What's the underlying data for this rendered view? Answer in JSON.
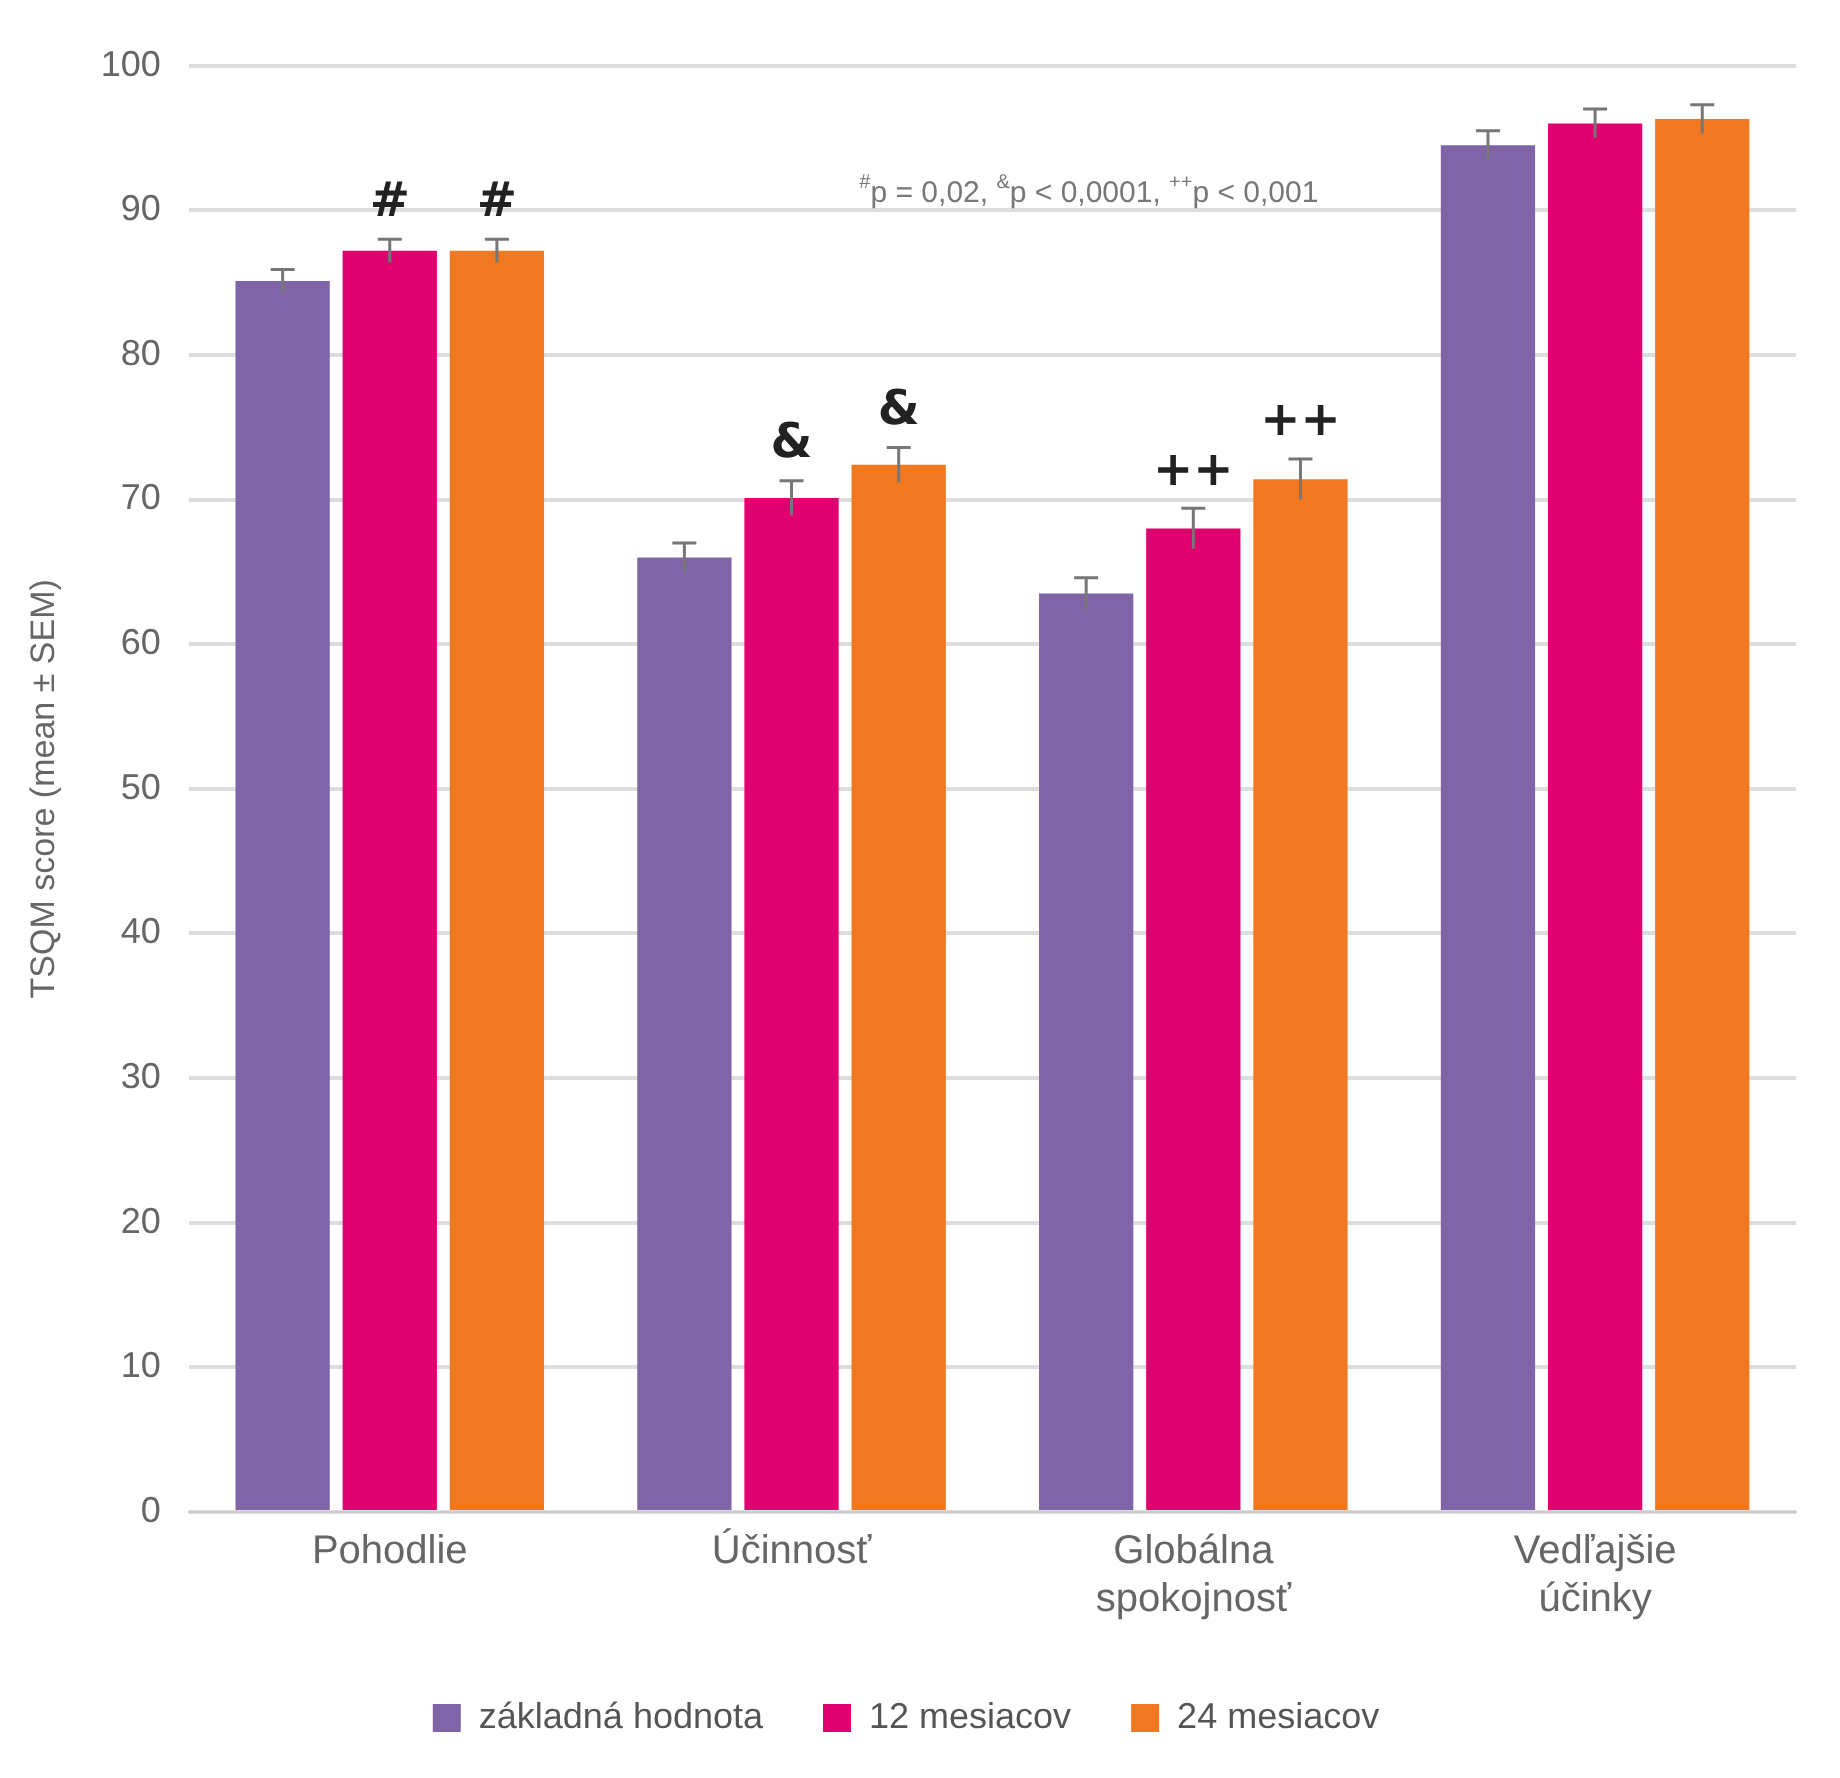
{
  "chart_data": {
    "type": "bar",
    "ylabel": "TSQM score (mean ± SEM)",
    "categories": [
      "Pohodlie",
      "Účinnosť",
      "Globálna spokojnosť",
      "Vedľajšie účinky"
    ],
    "series": [
      {
        "name": "základná hodnota",
        "color": "#8064a8",
        "values": [
          85.1,
          66.0,
          63.5,
          94.5
        ],
        "errors": [
          0.8,
          1.0,
          1.1,
          1.0
        ]
      },
      {
        "name": "12 mesiacov",
        "color": "#e0006f",
        "values": [
          87.2,
          70.1,
          68.0,
          96.0
        ],
        "errors": [
          0.8,
          1.2,
          1.4,
          1.0
        ],
        "value_labels": [
          "#",
          "&",
          "++",
          null
        ]
      },
      {
        "name": "24 mesiacov",
        "color": "#f07820",
        "values": [
          87.2,
          72.4,
          71.4,
          96.3
        ],
        "errors": [
          0.8,
          1.2,
          1.4,
          1.0
        ],
        "value_labels": [
          "#",
          "&",
          "++",
          null
        ]
      }
    ],
    "ylim": [
      0,
      100
    ],
    "yticks": [
      0,
      10,
      20,
      30,
      40,
      50,
      60,
      70,
      80,
      90,
      100
    ],
    "grid": "y",
    "legend": "bottom",
    "annotations": [
      "$^{#}$p = 0,02, $^{&}$p < 0,0001, $^{++}$p < 0,001"
    ]
  }
}
